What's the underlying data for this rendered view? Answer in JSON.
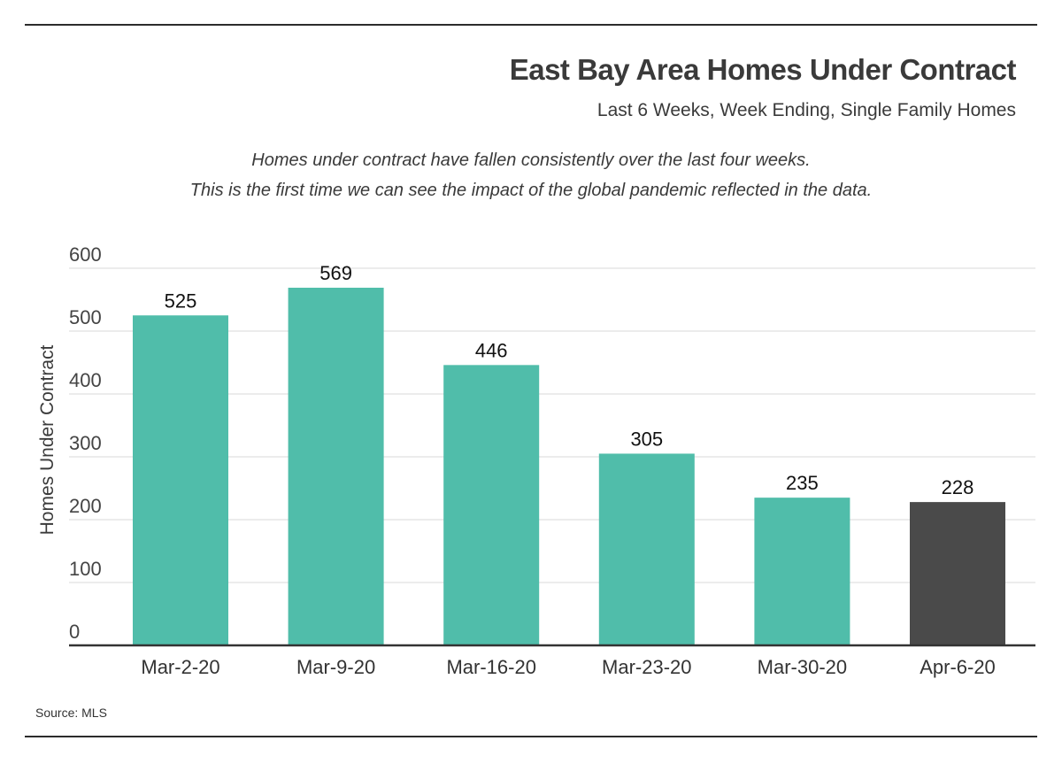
{
  "chart_data": {
    "type": "bar",
    "title": "East Bay Area Homes Under Contract",
    "subtitle": "Last 6 Weeks, Week Ending, Single Family Homes",
    "annotations": [
      "Homes under contract have fallen consistently over the last four weeks.",
      "This is the first time we can see the impact of the global pandemic reflected in the data."
    ],
    "categories": [
      "Mar-2-20",
      "Mar-9-20",
      "Mar-16-20",
      "Mar-23-20",
      "Mar-30-20",
      "Apr-6-20"
    ],
    "values": [
      525,
      569,
      446,
      305,
      235,
      228
    ],
    "ylabel": "Homes Under Contract",
    "xlabel": "",
    "ylim": [
      0,
      600
    ],
    "yticks": [
      0,
      100,
      200,
      300,
      400,
      500,
      600
    ],
    "grid": true,
    "bar_colors": [
      "#50bdaa",
      "#50bdaa",
      "#50bdaa",
      "#50bdaa",
      "#50bdaa",
      "#4a4a4a"
    ],
    "source": "Source: MLS"
  }
}
